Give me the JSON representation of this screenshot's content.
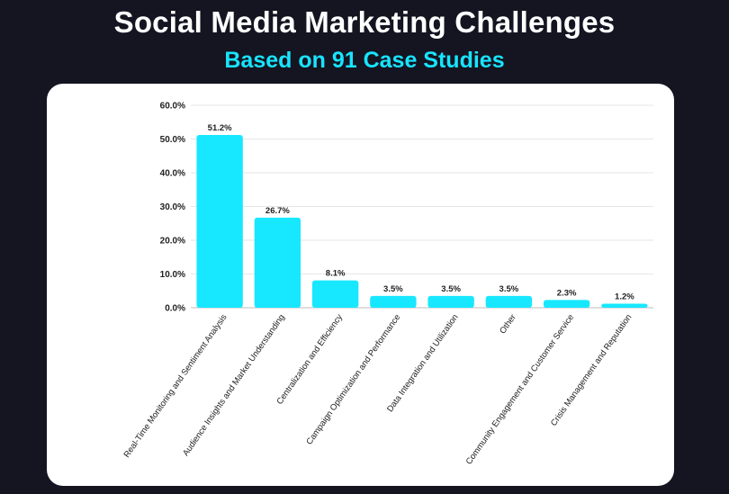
{
  "header": {
    "title": "Social Media Marketing Challenges",
    "subtitle": "Based on 91 Case Studies"
  },
  "colors": {
    "background": "#141521",
    "accent": "#18e4ff",
    "bar": "#18e8ff",
    "card": "#ffffff"
  },
  "chart_data": {
    "type": "bar",
    "title": "Social Media Marketing Challenges",
    "subtitle": "Based on 91 Case Studies",
    "categories": [
      "Real-Time Monitoring and Sentiment Analysis",
      "Audience Insights and Market Understanding",
      "Centralization and Efficiency",
      "Campaign Optimization and Performance",
      "Data Integration and Utilization",
      "Other",
      "Community Engagement and Customer Service",
      "Crisis Management and Reputation"
    ],
    "values": [
      51.2,
      26.7,
      8.1,
      3.5,
      3.5,
      3.5,
      2.3,
      1.2
    ],
    "data_labels": [
      "51.2%",
      "26.7%",
      "8.1%",
      "3.5%",
      "3.5%",
      "3.5%",
      "2.3%",
      "1.2%"
    ],
    "ylim": [
      0,
      60
    ],
    "yticks": [
      0,
      10,
      20,
      30,
      40,
      50,
      60
    ],
    "ytick_labels": [
      "0.0%",
      "10.0%",
      "20.0%",
      "30.0%",
      "40.0%",
      "50.0%",
      "60.0%"
    ],
    "xlabel": "",
    "ylabel": "",
    "grid": true,
    "legend": "none"
  }
}
